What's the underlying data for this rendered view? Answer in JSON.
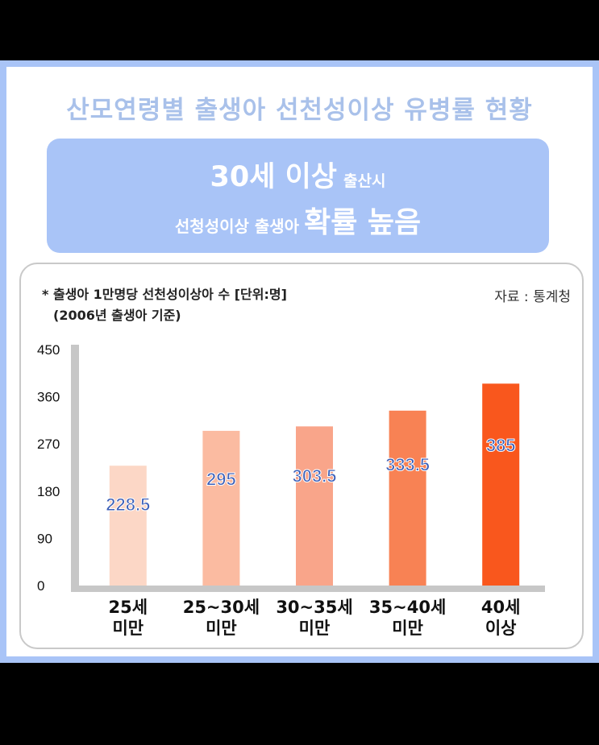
{
  "title": "산모연령별 출생아 선천성이상 유병률 현황",
  "banner": {
    "line1_big": "30세 이상",
    "line1_small": "출산시",
    "line2_small": "선청성이상 출생아",
    "line2_big": "확률 높음"
  },
  "note_line1": "* 출생아 1만명당 선천성이상아 수 [단위:명]",
  "note_line2": "(2006년 출생아 기준)",
  "source": "자료 : 통계청",
  "chart_data": {
    "type": "bar",
    "categories": [
      "25세 미만",
      "25~30세 미만",
      "30~35세 미만",
      "35~40세 미만",
      "40세 이상"
    ],
    "category_lines": [
      [
        "25세",
        "미만"
      ],
      [
        "25~30세",
        "미만"
      ],
      [
        "30~35세",
        "미만"
      ],
      [
        "35~40세",
        "미만"
      ],
      [
        "40세",
        "이상"
      ]
    ],
    "values": [
      228.5,
      295,
      303.5,
      333.5,
      385
    ],
    "value_labels": [
      "228.5",
      "295",
      "303.5",
      "333.5",
      "385"
    ],
    "bar_colors": [
      "#fcd7c6",
      "#fbbba1",
      "#f9a58a",
      "#f88254",
      "#f9571d"
    ],
    "yticks": [
      0,
      90,
      180,
      270,
      360,
      450
    ],
    "ylim": [
      0,
      450
    ],
    "grid": false
  }
}
